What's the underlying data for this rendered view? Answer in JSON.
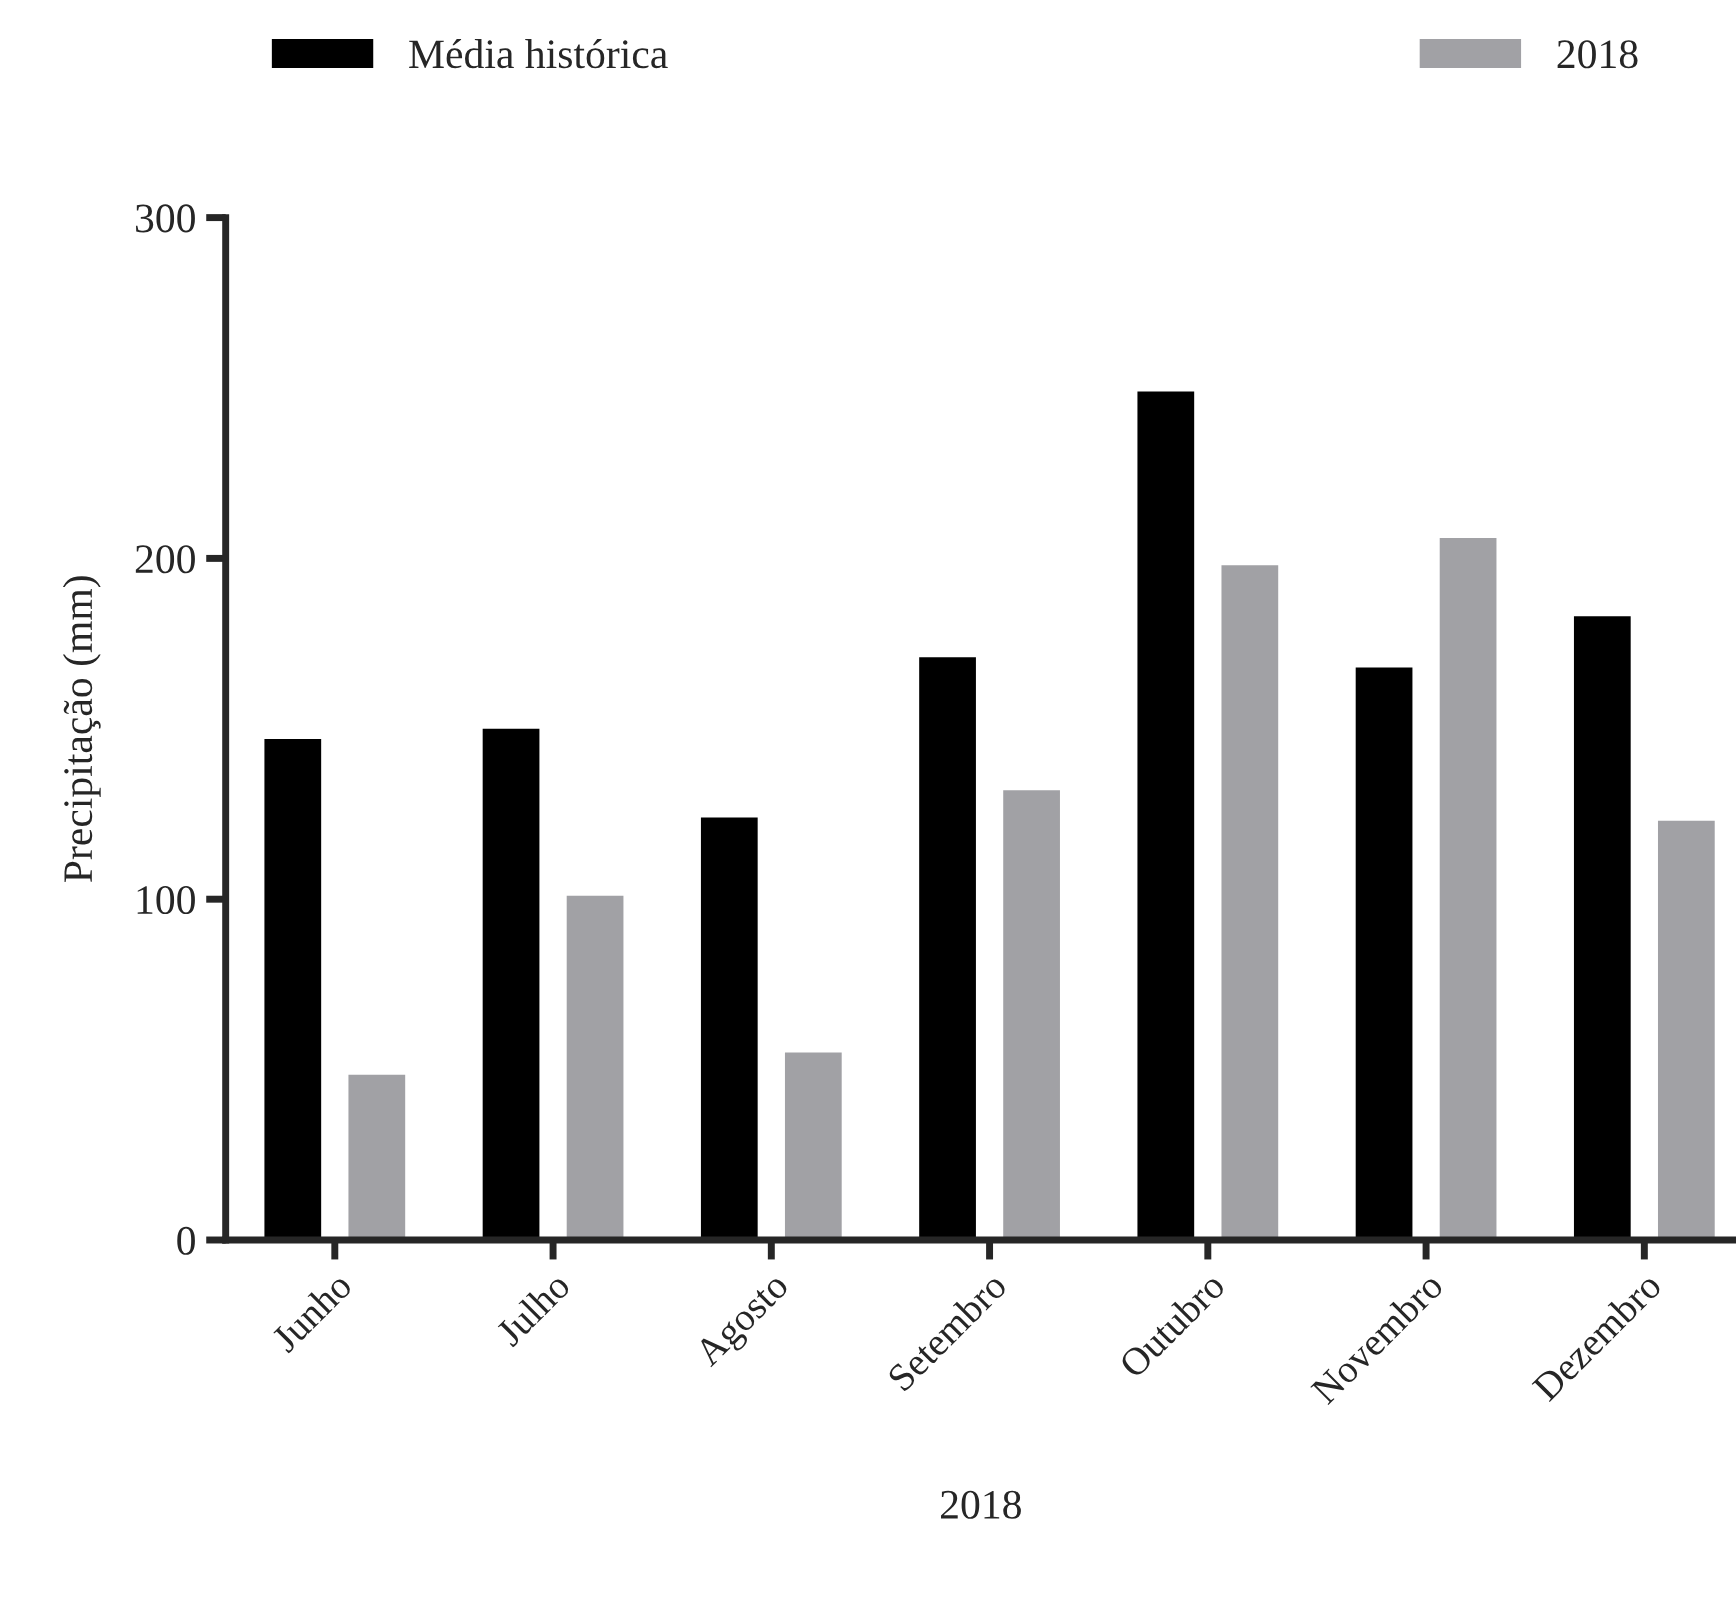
{
  "chart_data": {
    "type": "bar",
    "categories": [
      "Junho",
      "Julho",
      "Agosto",
      "Setembro",
      "Outubro",
      "Novembro",
      "Dezembro"
    ],
    "series": [
      {
        "name": "Média histórica",
        "color": "#000000",
        "values": [
          147,
          150,
          124,
          171,
          249,
          168,
          183
        ]
      },
      {
        "name": "2018",
        "color": "#a1a1a5",
        "values": [
          48.5,
          101,
          55,
          132,
          198,
          206,
          123
        ]
      }
    ],
    "xlabel": "2018",
    "ylabel": "Precipitação (mm)",
    "ylim": [
      0,
      300
    ],
    "yticks": [
      0,
      100,
      200,
      300
    ],
    "grid": false,
    "legend": "top"
  }
}
